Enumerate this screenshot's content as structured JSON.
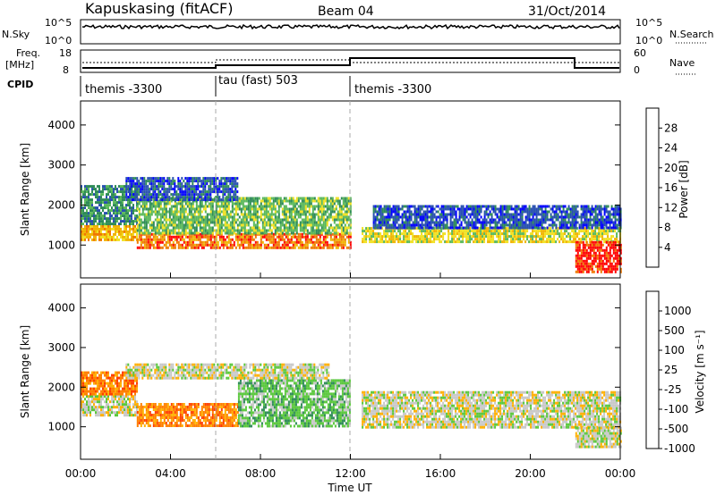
{
  "header": {
    "station": "Kapuskasing (fitACF)",
    "beam": "Beam 04",
    "date": "31/Oct/2014"
  },
  "top_panels": {
    "nsky_label": "N.Sky",
    "freq_label_1": "Freq.",
    "freq_label_2": "[MHz]",
    "cpid_label": "CPID",
    "nsearch_label": "N.Search",
    "nave_label": "Nave",
    "left_ticks_nsky": [
      "10^5",
      "10^0"
    ],
    "right_ticks_nsky": [
      "10^5",
      "10^0"
    ],
    "left_ticks_freq": [
      "18",
      "8"
    ],
    "right_ticks_nave": [
      "60",
      "0"
    ],
    "cpid_segments": [
      {
        "label": "themis -3300",
        "start_h": 0,
        "end_h": 6
      },
      {
        "label": "tau (fast) 503",
        "start_h": 6,
        "end_h": 12
      },
      {
        "label": "themis -3300",
        "start_h": 12,
        "end_h": 24
      }
    ]
  },
  "chart_data": [
    {
      "type": "heatmap",
      "title": "",
      "ylabel": "Slant Range [km]",
      "xlabel": "Time UT",
      "x_ticks": [
        "00:00",
        "04:00",
        "08:00",
        "12:00",
        "16:00",
        "20:00",
        "00:00"
      ],
      "xlim_hours": [
        0,
        24
      ],
      "ylim": [
        180,
        4600
      ],
      "y_ticks": [
        1000,
        2000,
        3000,
        4000
      ],
      "colorbar": {
        "label": "Power [dB]",
        "ticks": [
          "4",
          "8",
          "12",
          "16",
          "20",
          "24",
          "28"
        ],
        "colors": [
          "#0000ff",
          "#2850b0",
          "#2e8b57",
          "#5ab85a",
          "#f0e020",
          "#f0b400",
          "#f07800",
          "#ff0000"
        ]
      },
      "bands": [
        {
          "t0": 0,
          "t1": 2.5,
          "r0": 1150,
          "r1": 1500,
          "level": 5
        },
        {
          "t0": 0,
          "t1": 2.5,
          "r0": 1500,
          "r1": 2500,
          "level": 2
        },
        {
          "t0": 2.5,
          "t1": 12,
          "r0": 900,
          "r1": 1300,
          "level": 6
        },
        {
          "t0": 2.5,
          "t1": 12,
          "r0": 1300,
          "r1": 2200,
          "level": 3
        },
        {
          "t0": 2,
          "t1": 7,
          "r0": 2100,
          "r1": 2700,
          "level": 1
        },
        {
          "t0": 12.5,
          "t1": 24,
          "r0": 1100,
          "r1": 1450,
          "level": 4
        },
        {
          "t0": 13,
          "t1": 24,
          "r0": 1450,
          "r1": 2000,
          "level": 1
        },
        {
          "t0": 22,
          "t1": 24,
          "r0": 300,
          "r1": 1100,
          "level": 7
        }
      ]
    },
    {
      "type": "heatmap",
      "title": "",
      "ylabel": "Slant Range [km]",
      "xlabel": "Time UT",
      "x_ticks": [
        "00:00",
        "04:00",
        "08:00",
        "12:00",
        "16:00",
        "20:00",
        "00:00"
      ],
      "xlim_hours": [
        0,
        24
      ],
      "ylim": [
        180,
        4600
      ],
      "y_ticks": [
        1000,
        2000,
        3000,
        4000
      ],
      "colorbar": {
        "label": "Velocity [m s⁻¹]",
        "ticks": [
          "1000",
          "500",
          "100",
          "25",
          "-25",
          "-100",
          "-500",
          "-1000"
        ],
        "colors": [
          "#1a3cc8",
          "#2e8b57",
          "#5ac83c",
          "#c8c8c8",
          "#ffb000",
          "#ff8000",
          "#ff4000",
          "#ff0000"
        ]
      },
      "bands": [
        {
          "t0": 0,
          "t1": 2.5,
          "r0": 1300,
          "r1": 1800,
          "level": 3
        },
        {
          "t0": 0,
          "t1": 2.5,
          "r0": 1800,
          "r1": 2400,
          "level": 5
        },
        {
          "t0": 2.5,
          "t1": 7,
          "r0": 1000,
          "r1": 1600,
          "level": 5
        },
        {
          "t0": 7,
          "t1": 12,
          "r0": 1000,
          "r1": 2200,
          "level": 2
        },
        {
          "t0": 2,
          "t1": 11,
          "r0": 2200,
          "r1": 2600,
          "level": 3
        },
        {
          "t0": 12.5,
          "t1": 24,
          "r0": 1000,
          "r1": 1900,
          "level": 3
        },
        {
          "t0": 22,
          "t1": 24,
          "r0": 500,
          "r1": 1000,
          "level": 3
        }
      ]
    }
  ]
}
